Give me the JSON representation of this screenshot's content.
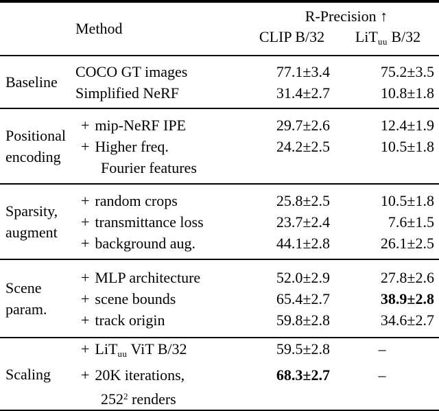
{
  "header": {
    "method": "Method",
    "metric_group": "R-Precision ↑",
    "col_clip": "CLIP B/32",
    "col_lit": {
      "base": "LiT",
      "sub": "uu",
      "rest": " B/32"
    }
  },
  "sections": [
    {
      "group_lines": [
        "Baseline"
      ],
      "rows": [
        {
          "plus": "",
          "line1": "COCO GT images",
          "clip": "77.1±3.4",
          "lit": "75.2±3.5"
        },
        {
          "plus": "",
          "line1": "Simplified NeRF",
          "clip": "31.4±2.7",
          "lit": "10.8±1.8"
        }
      ]
    },
    {
      "group_lines": [
        "Positional",
        "encoding"
      ],
      "rows": [
        {
          "plus": "+",
          "line1": "mip-NeRF IPE",
          "clip": "29.7±2.6",
          "lit": "12.4±1.9"
        },
        {
          "plus": "+",
          "line1": "Higher freq.",
          "line2": "Fourier features",
          "clip": "24.2±2.5",
          "lit": "10.5±1.8"
        }
      ]
    },
    {
      "group_lines": [
        "Sparsity,",
        "augment"
      ],
      "rows": [
        {
          "plus": "+",
          "line1": "random crops",
          "clip": "25.8±2.5",
          "lit": "10.5±1.8"
        },
        {
          "plus": "+",
          "line1": "transmittance loss",
          "clip": "23.7±2.4",
          "lit": "7.6±1.5"
        },
        {
          "plus": "+",
          "line1": "background aug.",
          "clip": "44.1±2.8",
          "lit": "26.1±2.5"
        }
      ]
    },
    {
      "group_lines": [
        "Scene",
        "param."
      ],
      "rows": [
        {
          "plus": "+",
          "line1": "MLP architecture",
          "clip": "52.0±2.9",
          "lit": "27.8±2.6"
        },
        {
          "plus": "+",
          "line1": "scene bounds",
          "clip": "65.4±2.7",
          "lit": "38.9±2.8",
          "lit_bold": true
        },
        {
          "plus": "+",
          "line1": "track origin",
          "clip": "59.8±2.8",
          "lit": "34.6±2.7"
        }
      ]
    },
    {
      "group_lines": [
        "Scaling"
      ],
      "rows": [
        {
          "plus": "+",
          "line1_parts": {
            "a": "LiT",
            "sub": "uu",
            "b": " ViT B/32"
          },
          "clip": "59.5±2.8",
          "lit": "–"
        },
        {
          "plus": "+",
          "line1": "20K iterations,",
          "line2_parts": {
            "a": "252",
            "sup": "2",
            "b": " renders"
          },
          "clip": "68.3±2.7",
          "clip_bold": true,
          "lit": "–"
        }
      ]
    }
  ]
}
